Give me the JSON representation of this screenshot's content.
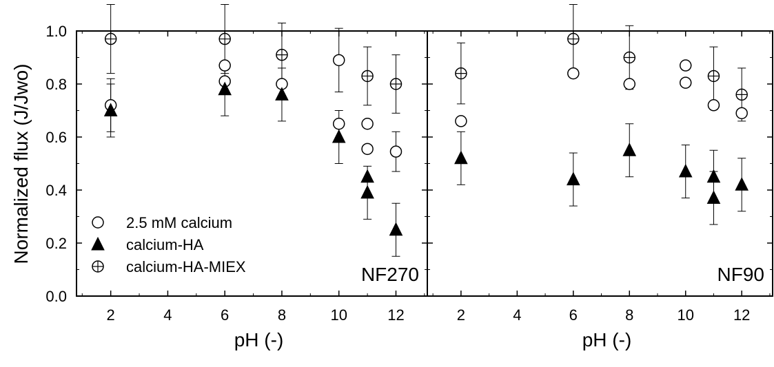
{
  "chart_data": {
    "type": "scatter",
    "ylabel": "Normalized flux (J/Jwo)",
    "ylim": [
      0.0,
      1.0
    ],
    "yticks": [
      "0.0",
      "0.2",
      "0.4",
      "0.6",
      "0.8",
      "1.0"
    ],
    "legend": {
      "placement": "lower-left of left panel",
      "entries": [
        {
          "label": "2.5 mM calcium",
          "marker": "open-circle"
        },
        {
          "label": "calcium-HA",
          "marker": "filled-triangle"
        },
        {
          "label": "calcium-HA-MIEX",
          "marker": "crossed-circle"
        }
      ]
    },
    "panels": [
      {
        "label": "NF270",
        "xlabel": "pH (-)",
        "xlim": [
          0.8,
          13.1
        ],
        "xticks": [
          "2",
          "4",
          "6",
          "8",
          "10",
          "12"
        ],
        "series": [
          {
            "name": "2.5 mM calcium",
            "marker": "open-circle",
            "points": [
              {
                "x": 2,
                "y": 0.72,
                "err": 0.1
              },
              {
                "x": 6,
                "y": 0.87,
                "err": 0.0
              },
              {
                "x": 6,
                "y": 0.81,
                "err": 0.0
              },
              {
                "x": 8,
                "y": 0.8,
                "err": 0.0
              },
              {
                "x": 10,
                "y": 0.89,
                "err": 0.12
              },
              {
                "x": 10,
                "y": 0.65,
                "err": 0.0
              },
              {
                "x": 11,
                "y": 0.65,
                "err": 0.0
              },
              {
                "x": 11,
                "y": 0.555,
                "err": 0.0
              },
              {
                "x": 12,
                "y": 0.545,
                "err": 0.075
              }
            ]
          },
          {
            "name": "calcium-HA",
            "marker": "filled-triangle",
            "points": [
              {
                "x": 2,
                "y": 0.7,
                "err": 0.1
              },
              {
                "x": 6,
                "y": 0.78,
                "err": 0.1
              },
              {
                "x": 8,
                "y": 0.76,
                "err": 0.1
              },
              {
                "x": 10,
                "y": 0.6,
                "err": 0.1
              },
              {
                "x": 11,
                "y": 0.45,
                "err": 0.0
              },
              {
                "x": 11,
                "y": 0.39,
                "err": 0.1
              },
              {
                "x": 12,
                "y": 0.25,
                "err": 0.1
              }
            ]
          },
          {
            "name": "calcium-HA-MIEX",
            "marker": "crossed-circle",
            "points": [
              {
                "x": 2,
                "y": 0.97,
                "err": 0.13
              },
              {
                "x": 6,
                "y": 0.97,
                "err": 0.13
              },
              {
                "x": 8,
                "y": 0.91,
                "err": 0.12
              },
              {
                "x": 11,
                "y": 0.83,
                "err": 0.11
              },
              {
                "x": 12,
                "y": 0.8,
                "err": 0.11
              }
            ]
          }
        ]
      },
      {
        "label": "NF90",
        "xlabel": "pH (-)",
        "xlim": [
          0.8,
          13.1
        ],
        "xticks": [
          "2",
          "4",
          "6",
          "8",
          "10",
          "12"
        ],
        "series": [
          {
            "name": "2.5 mM calcium",
            "marker": "open-circle",
            "points": [
              {
                "x": 2,
                "y": 0.66,
                "err": 0.0
              },
              {
                "x": 6,
                "y": 0.84,
                "err": 0.0
              },
              {
                "x": 8,
                "y": 0.8,
                "err": 0.0
              },
              {
                "x": 10,
                "y": 0.87,
                "err": 0.0
              },
              {
                "x": 10,
                "y": 0.805,
                "err": 0.0
              },
              {
                "x": 11,
                "y": 0.72,
                "err": 0.0
              },
              {
                "x": 12,
                "y": 0.69,
                "err": 0.0
              }
            ]
          },
          {
            "name": "calcium-HA",
            "marker": "filled-triangle",
            "points": [
              {
                "x": 2,
                "y": 0.52,
                "err": 0.1
              },
              {
                "x": 6,
                "y": 0.44,
                "err": 0.1
              },
              {
                "x": 8,
                "y": 0.55,
                "err": 0.1
              },
              {
                "x": 10,
                "y": 0.47,
                "err": 0.1
              },
              {
                "x": 11,
                "y": 0.45,
                "err": 0.1
              },
              {
                "x": 11,
                "y": 0.37,
                "err": 0.1
              },
              {
                "x": 12,
                "y": 0.42,
                "err": 0.1
              }
            ]
          },
          {
            "name": "calcium-HA-MIEX",
            "marker": "crossed-circle",
            "points": [
              {
                "x": 2,
                "y": 0.84,
                "err": 0.115
              },
              {
                "x": 6,
                "y": 0.97,
                "err": 0.13
              },
              {
                "x": 8,
                "y": 0.9,
                "err": 0.12
              },
              {
                "x": 11,
                "y": 0.83,
                "err": 0.11
              },
              {
                "x": 12,
                "y": 0.76,
                "err": 0.1
              }
            ]
          }
        ]
      }
    ]
  }
}
